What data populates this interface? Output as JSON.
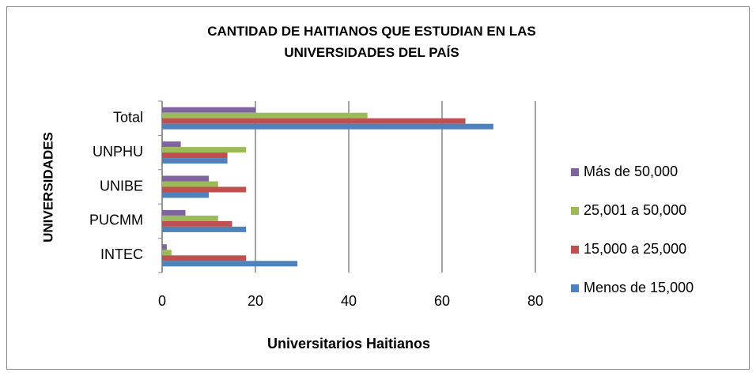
{
  "chart_data": {
    "type": "bar",
    "orientation": "horizontal",
    "title": "CANTIDAD DE HAITIANOS QUE ESTUDIAN EN LAS UNIVERSIDADES DEL PAÍS",
    "x_label": "Universitarios Haitianos",
    "y_label": "UNIVERSIDADES",
    "categories": [
      "INTEC",
      "PUCMM",
      "UNIBE",
      "UNPHU",
      "Total"
    ],
    "series": [
      {
        "name": "Más de 50,000",
        "color": "#8064a2",
        "values": [
          1,
          5,
          10,
          4,
          20
        ]
      },
      {
        "name": "25,001 a 50,000",
        "color": "#9bbb59",
        "values": [
          2,
          12,
          12,
          18,
          44
        ]
      },
      {
        "name": "15,000 a 25,000",
        "color": "#c0504d",
        "values": [
          18,
          15,
          18,
          14,
          65
        ]
      },
      {
        "name": "Menos de 15,000",
        "color": "#4f81bd",
        "values": [
          29,
          18,
          10,
          14,
          71
        ]
      }
    ],
    "xlim": [
      0,
      80
    ],
    "xticks": [
      0,
      20,
      40,
      60,
      80
    ],
    "grid": true,
    "legend": "right"
  }
}
